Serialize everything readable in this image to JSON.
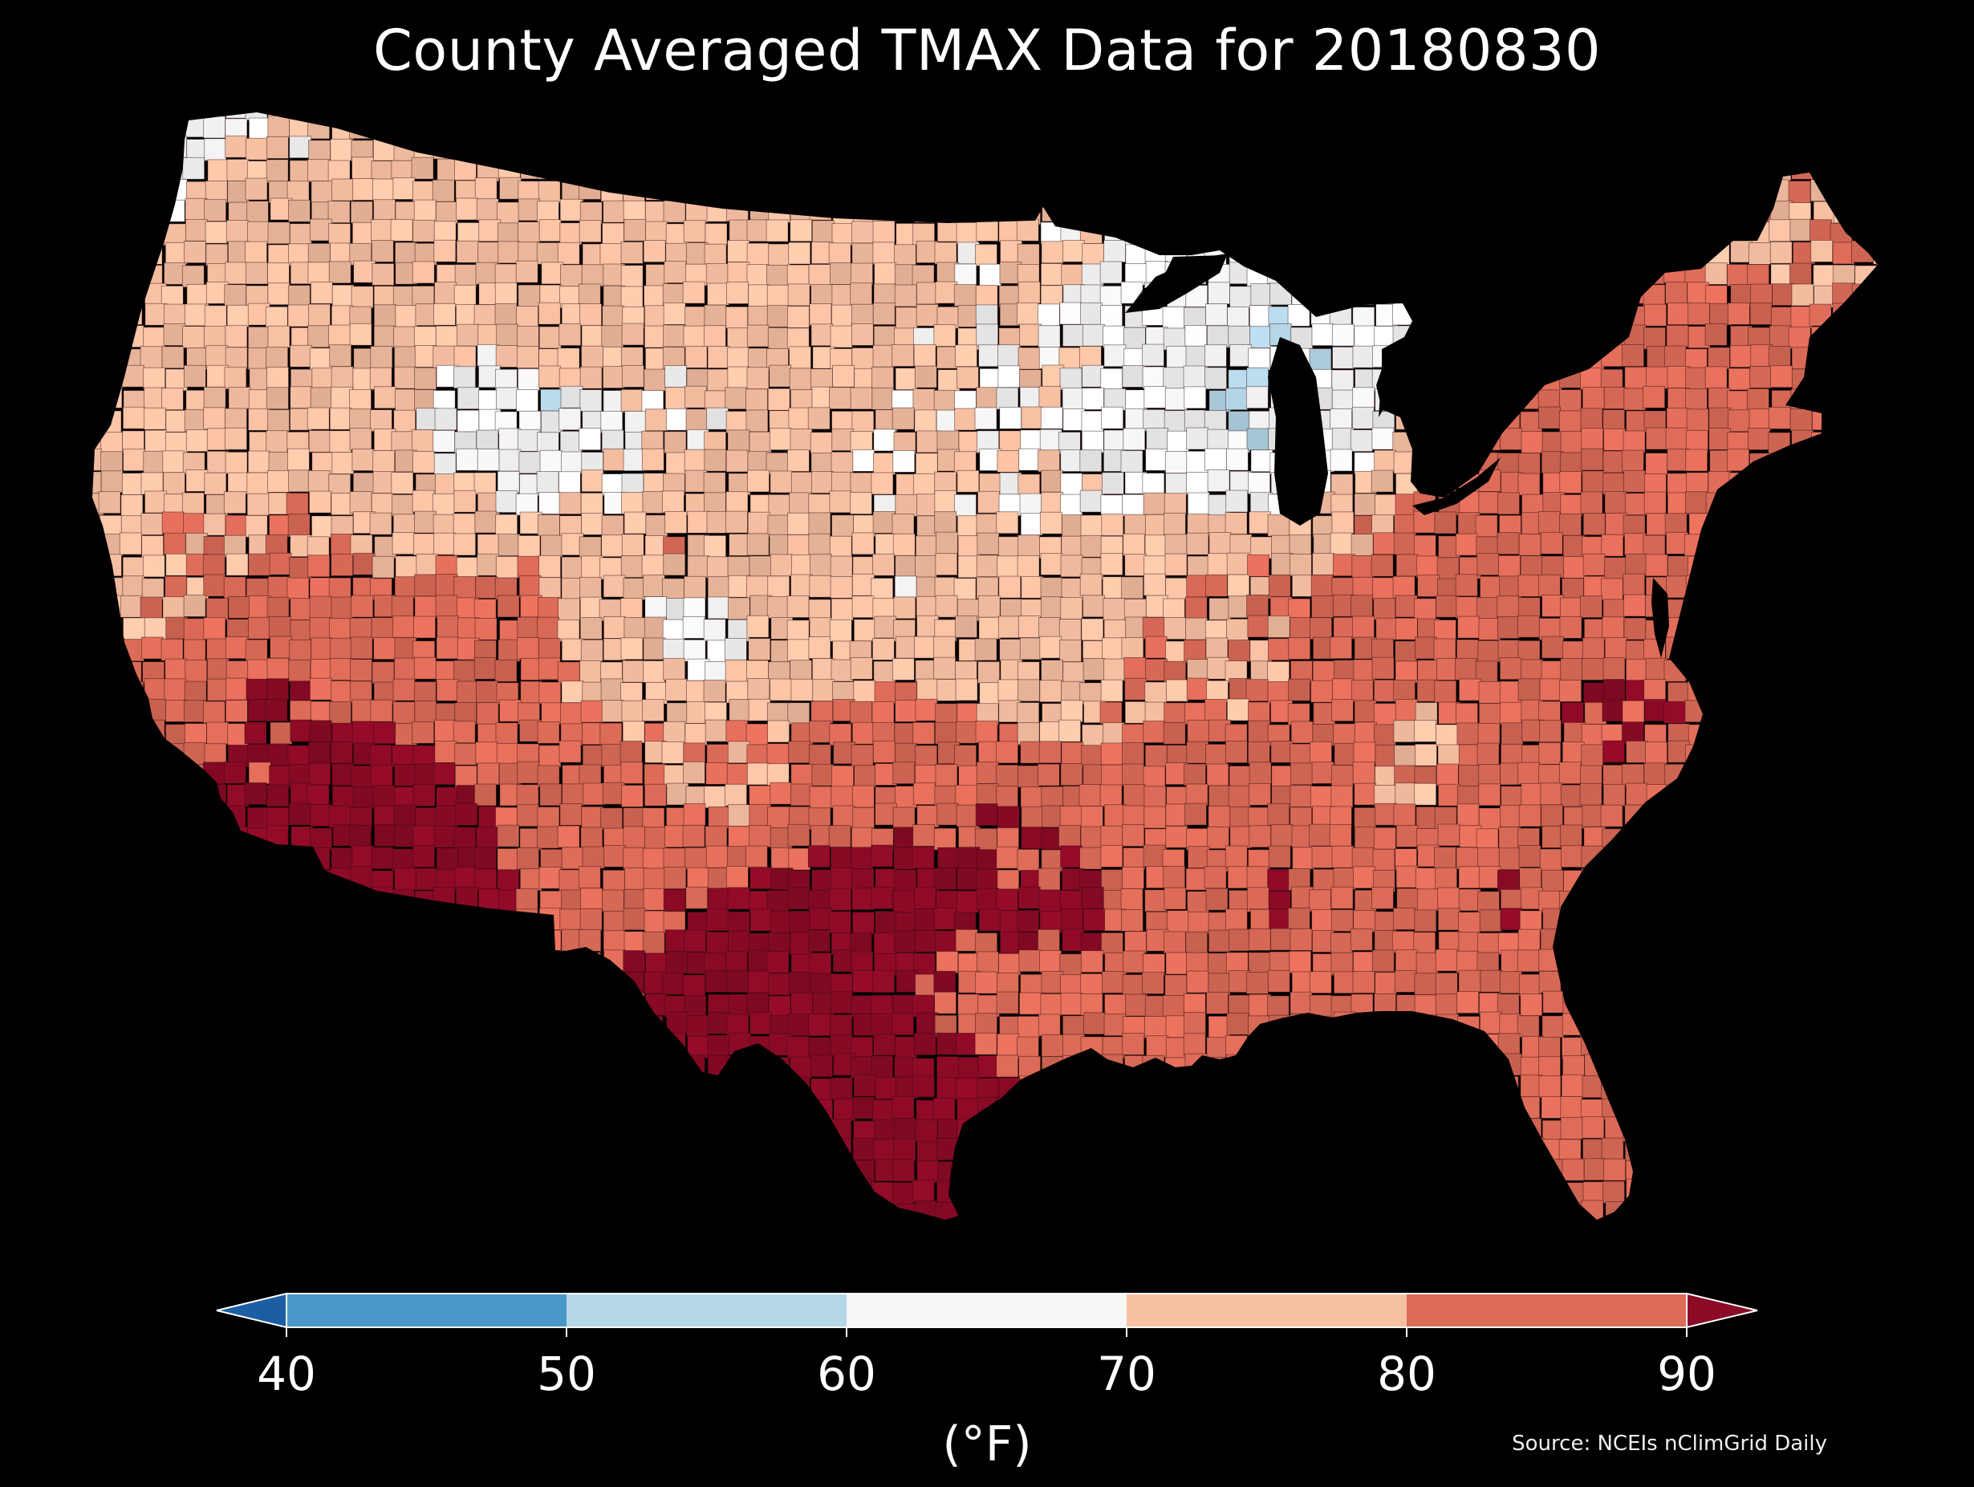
{
  "title": "County Averaged TMAX Data for 20180830",
  "source": "Source: NCEIs nClimGrid Daily",
  "colorbar": {
    "units": "(°F)",
    "ticks": [
      "40",
      "50",
      "60",
      "70",
      "80",
      "90"
    ],
    "extend": "both",
    "min_value": 40,
    "max_value": 90,
    "bins": [
      {
        "range": [
          null,
          40
        ],
        "color": "#1b5ea3"
      },
      {
        "range": [
          40,
          50
        ],
        "color": "#4a98c9"
      },
      {
        "range": [
          50,
          60
        ],
        "color": "#b6d7e8"
      },
      {
        "range": [
          60,
          70
        ],
        "color": "#f7f7f7"
      },
      {
        "range": [
          70,
          80
        ],
        "color": "#f8c0a3"
      },
      {
        "range": [
          80,
          90
        ],
        "color": "#dc6b58"
      },
      {
        "range": [
          90,
          null
        ],
        "color": "#8b0a26"
      }
    ]
  },
  "map": {
    "projection": "albers-equal-area",
    "region": "contiguous-united-states",
    "value_field": "tmax_degF",
    "background_color": "#000000",
    "border_color": "#2a0d0d"
  }
}
